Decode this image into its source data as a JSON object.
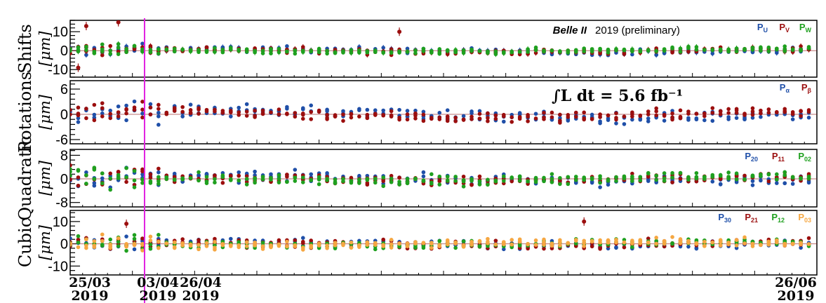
{
  "chart_data": {
    "type": "scatter",
    "annotation": {
      "experiment": "Belle II",
      "note": "2019 (preliminary)",
      "luminosity": "∫L dt = 5.6 fb⁻¹"
    },
    "x_tick_labels": [
      {
        "date": "25/03",
        "year": "2019"
      },
      {
        "date": "03/04",
        "year": "2019"
      },
      {
        "date": "26/04",
        "year": "2019"
      },
      {
        "date": "26/06",
        "year": "2019"
      }
    ],
    "x_range": [
      "2019-03-25",
      "2019-06-26"
    ],
    "marker_date": "2019-04-03",
    "marker_color": "#e020e0",
    "panels": [
      {
        "ylabel_line1": "Shifts",
        "ylabel_line2": "[μm]",
        "ylim": [
          -14,
          16
        ],
        "yticks": [
          -10,
          0,
          10
        ],
        "legend": [
          {
            "base": "P",
            "sub": "U",
            "color": "#1f4fa8"
          },
          {
            "base": "P",
            "sub": "V",
            "color": "#9b0e0e"
          },
          {
            "base": "P",
            "sub": "W",
            "color": "#1fa01f"
          }
        ],
        "spread": 1.3,
        "outliers": [
          {
            "date": "2019-03-27",
            "value": 13
          },
          {
            "date": "2019-03-31",
            "value": 15
          },
          {
            "date": "2019-05-05",
            "value": 10
          },
          {
            "date": "2019-03-26",
            "value": -9
          }
        ]
      },
      {
        "ylabel_line1": "Rotations",
        "ylabel_line2": "[μm]",
        "ylim": [
          -7,
          8
        ],
        "yticks": [
          -6,
          0,
          6
        ],
        "legend": [
          {
            "base": "P",
            "sub": "α",
            "color": "#1f4fa8"
          },
          {
            "base": "P",
            "sub": "β",
            "color": "#9b0e0e"
          }
        ],
        "spread": 1.2,
        "outliers": []
      },
      {
        "ylabel_line1": "Quadratic",
        "ylabel_line2": "[μm]",
        "ylim": [
          -9.5,
          10
        ],
        "yticks": [
          -8,
          0,
          8
        ],
        "legend": [
          {
            "base": "P",
            "sub": "20",
            "color": "#1f4fa8"
          },
          {
            "base": "P",
            "sub": "11",
            "color": "#9b0e0e"
          },
          {
            "base": "P",
            "sub": "02",
            "color": "#1fa01f"
          }
        ],
        "spread": 1.5,
        "outliers": []
      },
      {
        "ylabel_line1": "Cubic",
        "ylabel_line2": "[μm]",
        "ylim": [
          -14,
          15
        ],
        "yticks": [
          -10,
          0,
          10
        ],
        "legend": [
          {
            "base": "P",
            "sub": "30",
            "color": "#1f4fa8"
          },
          {
            "base": "P",
            "sub": "21",
            "color": "#9b0e0e"
          },
          {
            "base": "P",
            "sub": "12",
            "color": "#1fa01f"
          },
          {
            "base": "P",
            "sub": "03",
            "color": "#f5a742"
          }
        ],
        "spread": 1.6,
        "outliers": [
          {
            "date": "2019-04-01",
            "value": 9
          },
          {
            "date": "2019-05-28",
            "value": 10
          }
        ]
      }
    ]
  }
}
